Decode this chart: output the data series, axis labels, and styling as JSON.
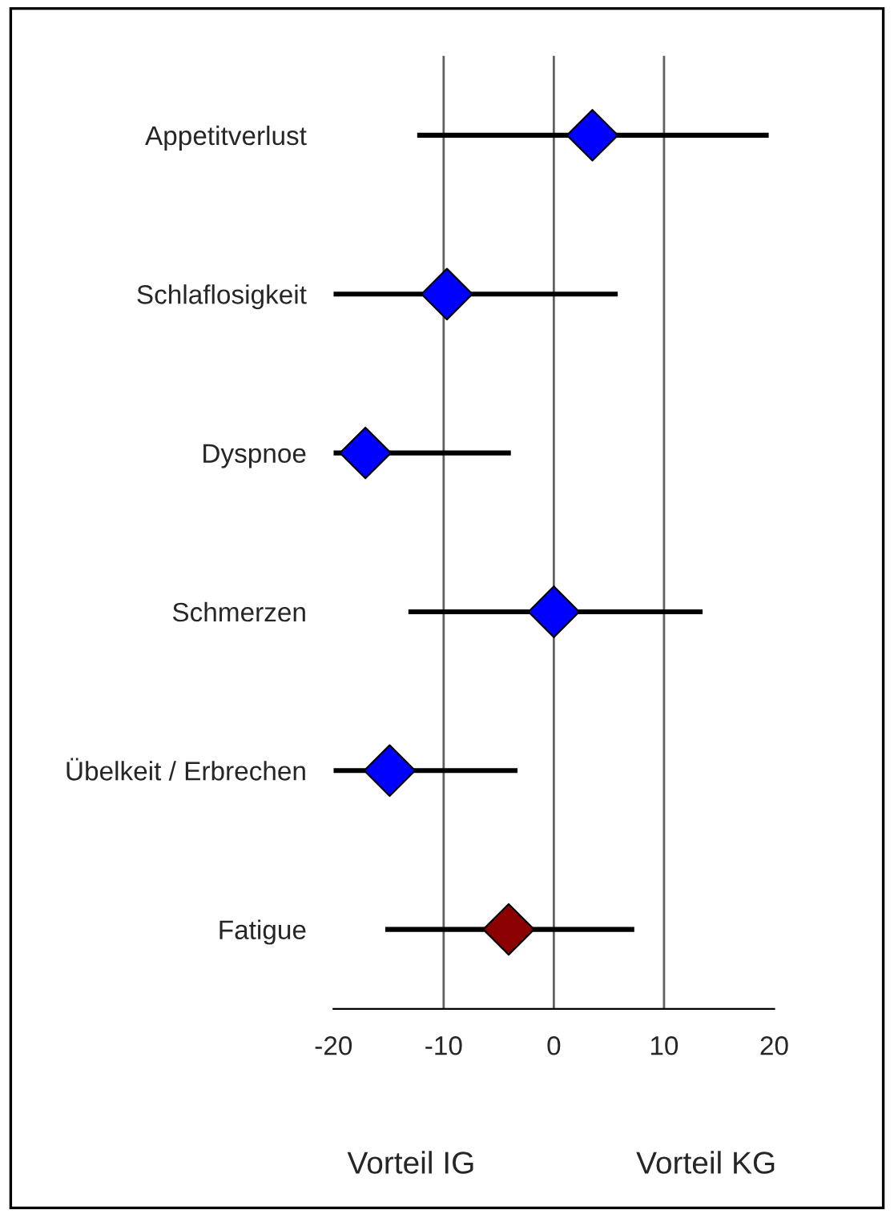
{
  "chart_data": {
    "type": "scatter",
    "orientation": "horizontal",
    "categories": [
      "Appetitverlust",
      "Schlaflosigkeit",
      "Dyspnoe",
      "Schmerzen",
      "Übelkeit / Erbrechen",
      "Fatigue"
    ],
    "values": [
      3.5,
      -9.7,
      -17.1,
      0,
      -14.9,
      -4.1
    ],
    "errors": [
      [
        -12.4,
        19.5
      ],
      [
        -20,
        5.8
      ],
      [
        -20,
        -3.9
      ],
      [
        -13.2,
        13.5
      ],
      [
        -20,
        -3.3
      ],
      [
        -15.3,
        7.3
      ]
    ],
    "colors": [
      "#0000ff",
      "#0000ff",
      "#0000ff",
      "#0000ff",
      "#0000ff",
      "#8b0000"
    ],
    "marker": "diamond",
    "xlim": [
      -20,
      20
    ],
    "xticks": [
      -20,
      -10,
      0,
      10,
      20
    ],
    "ref_lines": [
      {
        "axis": "x",
        "value": -10,
        "color": "#606060"
      },
      {
        "axis": "x",
        "value": 0,
        "color": "#606060"
      },
      {
        "axis": "x",
        "value": 10,
        "color": "#606060"
      }
    ],
    "annotations": [
      "Vorteil IG",
      "Vorteil KG"
    ],
    "grid": false,
    "legend": false
  }
}
